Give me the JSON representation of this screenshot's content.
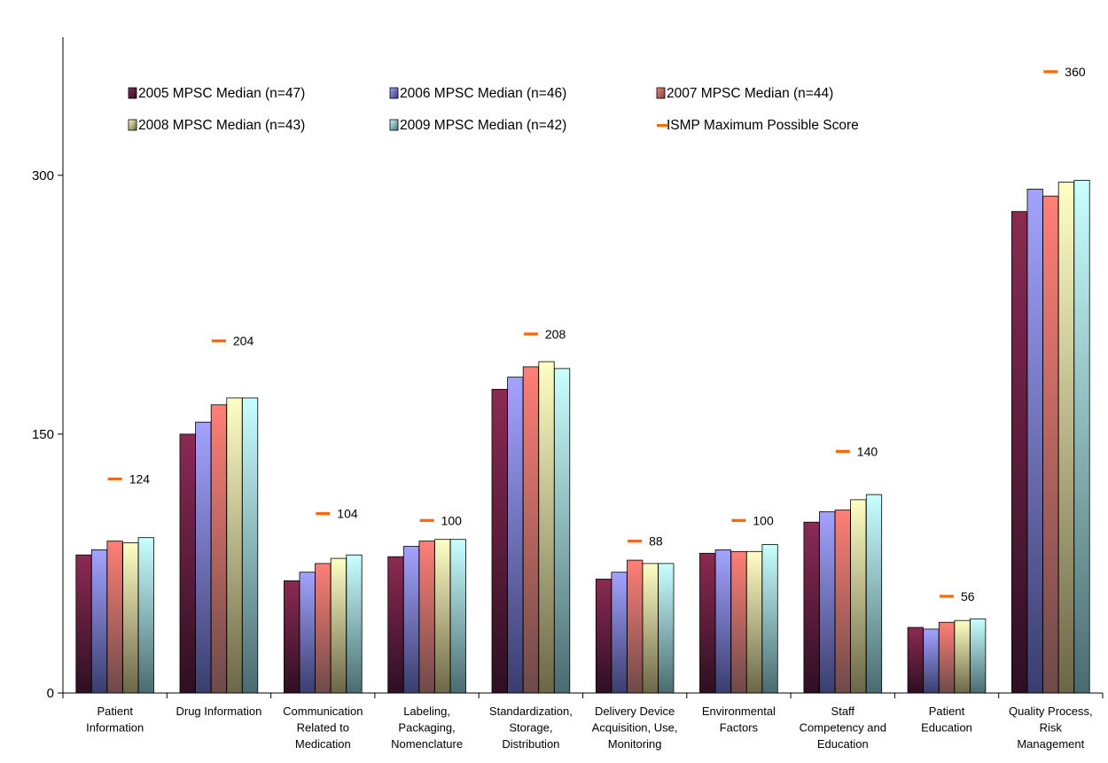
{
  "chart_data": {
    "type": "bar",
    "title": "",
    "xlabel": "",
    "ylabel": "",
    "ylim": [
      0,
      380
    ],
    "yticks": [
      0,
      150,
      300
    ],
    "grid": false,
    "legend_position": "top-left inside",
    "categories": [
      [
        "Patient",
        "Information"
      ],
      [
        "Drug Information"
      ],
      [
        "Communication",
        "Related to",
        "Medication"
      ],
      [
        "Labeling,",
        "Packaging,",
        "Nomenclature"
      ],
      [
        "Standardization,",
        "Storage,",
        "Distribution"
      ],
      [
        "Delivery Device",
        "Acquisition, Use,",
        "Monitoring"
      ],
      [
        "Environmental",
        "Factors"
      ],
      [
        "Staff",
        "Competency and",
        "Education"
      ],
      [
        "Patient",
        "Education"
      ],
      [
        "Quality Process,",
        "Risk",
        "Management"
      ]
    ],
    "series": [
      {
        "name": "2005 MPSC Median (n=47)",
        "color_top": "#8b2a52",
        "color_bottom": "#2e0f22",
        "values": [
          80,
          150,
          65,
          79,
          176,
          66,
          81,
          99,
          38,
          279
        ]
      },
      {
        "name": "2006 MPSC Median (n=46)",
        "color_top": "#a3a3ff",
        "color_bottom": "#3a3d6e",
        "values": [
          83,
          157,
          70,
          85,
          183,
          70,
          83,
          105,
          37,
          292
        ]
      },
      {
        "name": "2007 MPSC Median (n=44)",
        "color_top": "#ff7f76",
        "color_bottom": "#6d4a48",
        "values": [
          88,
          167,
          75,
          88,
          189,
          77,
          82,
          106,
          41,
          288
        ]
      },
      {
        "name": "2008 MPSC Median (n=43)",
        "color_top": "#ffffc4",
        "color_bottom": "#6b6648",
        "values": [
          87,
          171,
          78,
          89,
          192,
          75,
          82,
          112,
          42,
          296
        ]
      },
      {
        "name": "2009 MPSC Median (n=42)",
        "color_top": "#c9ffff",
        "color_bottom": "#4a6b70",
        "values": [
          90,
          171,
          80,
          89,
          188,
          75,
          86,
          115,
          43,
          297
        ]
      }
    ],
    "max_series": {
      "name": "ISMP Maximum Possible Score",
      "color": "#ff6600",
      "values": [
        124,
        204,
        104,
        100,
        208,
        88,
        100,
        140,
        56,
        360
      ]
    }
  }
}
